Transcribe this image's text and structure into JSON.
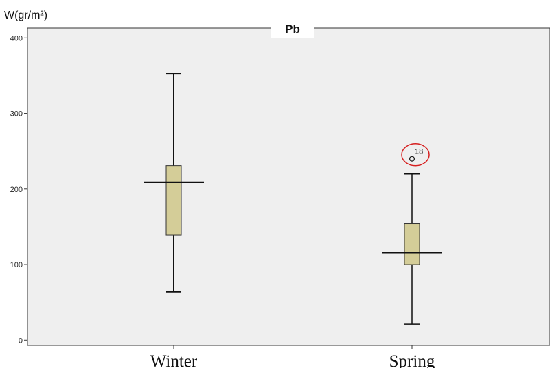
{
  "chart_data": {
    "type": "boxplot",
    "title": "Pb",
    "ylabel": "W(gr/m²)",
    "ylim": [
      -7,
      413
    ],
    "yticks": [
      0,
      100,
      200,
      300,
      400
    ],
    "categories": [
      "Winter",
      "Spring"
    ],
    "boxes": [
      {
        "category": "Winter",
        "min": 64,
        "q1": 139,
        "median": 209,
        "q3": 231,
        "max": 353,
        "outliers": []
      },
      {
        "category": "Spring",
        "min": 21,
        "q1": 100,
        "median": 116,
        "q3": 154,
        "max": 220,
        "outliers": [
          {
            "value": 240,
            "label": "18"
          }
        ]
      }
    ],
    "grid": false,
    "colors": {
      "plot_bg": "#efefef",
      "box_fill": "#d4cd98",
      "highlight_circle": "#d62020"
    }
  }
}
